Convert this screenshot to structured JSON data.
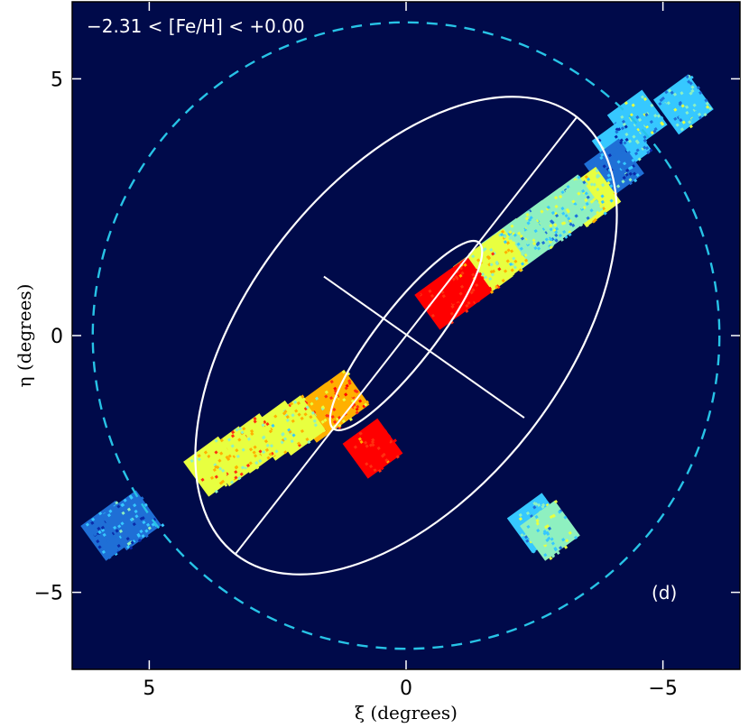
{
  "chart_data": {
    "type": "scatter",
    "title": "",
    "annotation": "−2.31 < [Fe/H] < +0.00",
    "panel_label": "(d)",
    "xlabel": "ξ (degrees)",
    "ylabel": "η (degrees)",
    "xlim": [
      6.5,
      -6.5
    ],
    "ylim": [
      -6.5,
      6.5
    ],
    "x_ticks": [
      5,
      0,
      -5
    ],
    "x_tick_labels": [
      "5",
      "0",
      "−5"
    ],
    "y_ticks": [
      5,
      0,
      -5
    ],
    "y_tick_labels": [
      "5",
      "0",
      "−5"
    ],
    "x_reversed": true,
    "grid": false,
    "colors": {
      "background": "#000a4a",
      "boundary_circle": "#27c3e6",
      "ellipse": "#ffffff",
      "colormap": [
        "#0a2aa8",
        "#1f6fd6",
        "#36c8ff",
        "#8ef0c0",
        "#e8ff40",
        "#ffb000",
        "#ff3010",
        "#ff0000"
      ]
    },
    "boundary_circle": {
      "center": [
        0,
        0
      ],
      "radius_deg": 6.1,
      "style": "dashed"
    },
    "ellipses": [
      {
        "name": "outer",
        "center": [
          0,
          0
        ],
        "semi_major_deg": 5.4,
        "semi_minor_deg": 3.05,
        "major_axis_angle_deg": 128,
        "draw_major_axis": true
      },
      {
        "name": "inner",
        "center": [
          0,
          0
        ],
        "semi_major_deg": 2.3,
        "semi_minor_deg": 0.55,
        "major_axis_angle_deg": 128,
        "draw_major_axis": false
      }
    ],
    "major_axis_line": {
      "from": [
        -2.3,
        -1.6
      ],
      "to": [
        1.6,
        1.15
      ]
    },
    "fields": [
      {
        "xi": -4.5,
        "eta": 4.2,
        "density": 0.35
      },
      {
        "xi": -5.4,
        "eta": 4.5,
        "density": 0.3
      },
      {
        "xi": -4.2,
        "eta": 3.7,
        "density": 0.25
      },
      {
        "xi": -4.05,
        "eta": 3.25,
        "density": 0.2
      },
      {
        "xi": -3.6,
        "eta": 2.7,
        "density": 0.5
      },
      {
        "xi": -3.25,
        "eta": 2.55,
        "density": 0.4
      },
      {
        "xi": -2.9,
        "eta": 2.3,
        "density": 0.38
      },
      {
        "xi": -2.55,
        "eta": 2.05,
        "density": 0.36
      },
      {
        "xi": -2.3,
        "eta": 1.85,
        "density": 0.4
      },
      {
        "xi": -2.05,
        "eta": 1.7,
        "density": 0.42
      },
      {
        "xi": -1.8,
        "eta": 1.5,
        "density": 0.52
      },
      {
        "xi": -1.5,
        "eta": 1.25,
        "density": 0.62
      },
      {
        "xi": -1.1,
        "eta": 0.95,
        "density": 0.95
      },
      {
        "xi": -0.75,
        "eta": 0.7,
        "density": 0.98
      },
      {
        "xi": 1.3,
        "eta": -1.25,
        "density": 0.75
      },
      {
        "xi": 1.65,
        "eta": -1.5,
        "density": 0.7
      },
      {
        "xi": 2.15,
        "eta": -1.75,
        "density": 0.6
      },
      {
        "xi": 2.45,
        "eta": -1.85,
        "density": 0.55
      },
      {
        "xi": 2.95,
        "eta": -2.1,
        "density": 0.62
      },
      {
        "xi": 3.35,
        "eta": -2.35,
        "density": 0.58
      },
      {
        "xi": 3.75,
        "eta": -2.55,
        "density": 0.62
      },
      {
        "xi": 0.65,
        "eta": -2.2,
        "density": 0.98
      },
      {
        "xi": -2.55,
        "eta": -3.65,
        "density": 0.32
      },
      {
        "xi": -2.8,
        "eta": -3.8,
        "density": 0.4
      },
      {
        "xi": 5.75,
        "eta": -3.8,
        "density": 0.15
      },
      {
        "xi": 5.35,
        "eta": -3.6,
        "density": 0.18
      }
    ]
  }
}
